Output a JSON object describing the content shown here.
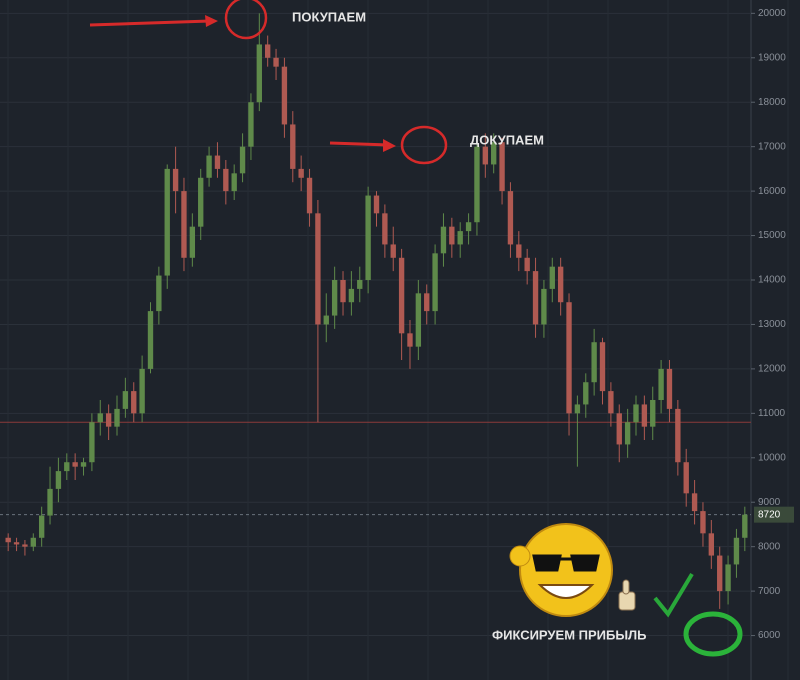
{
  "chart_data": {
    "type": "candlestick",
    "annotations": [
      "ПОКУПАЕМ",
      "ДОКУПАЕМ",
      "ФИКСИРУЕМ ПРИБЫЛЬ"
    ],
    "ylim": [
      5000,
      20300
    ],
    "yticks": [
      6000,
      7000,
      8000,
      9000,
      10000,
      11000,
      12000,
      13000,
      14000,
      15000,
      16000,
      17000,
      18000,
      19000,
      20000
    ],
    "grid": true,
    "last_price": 8720,
    "level": 10800,
    "up_color": "#5f8a4a",
    "down_color": "#b05a52",
    "open": [
      8200,
      8100,
      8050,
      8000,
      8200,
      8700,
      9300,
      9700,
      9900,
      9800,
      9900,
      10800,
      11000,
      10700,
      11100,
      11500,
      11000,
      12000,
      13300,
      14100,
      16500,
      16000,
      14500,
      15200,
      16300,
      16800,
      16500,
      16000,
      16400,
      17000,
      18000,
      19300,
      19000,
      18800,
      17500,
      16500,
      16300,
      15500,
      13000,
      13200,
      14000,
      13500,
      13800,
      14000,
      15900,
      15500,
      14800,
      14500,
      12800,
      12500,
      13700,
      13300,
      14600,
      15200,
      14800,
      15100,
      15300,
      17000,
      16600,
      17100,
      16000,
      14800,
      14500,
      14200,
      13000,
      13800,
      14300,
      13500,
      11000,
      11200,
      11700,
      12600,
      11500,
      11000,
      10300,
      10800,
      11200,
      10700,
      11300,
      12000,
      11100,
      9900,
      9200,
      8800,
      8300,
      7800,
      7000,
      7600,
      8200
    ],
    "high": [
      8300,
      8200,
      8150,
      8300,
      8900,
      9800,
      10000,
      10100,
      10100,
      10000,
      11000,
      11300,
      11200,
      11400,
      11800,
      11700,
      12300,
      13500,
      14300,
      16600,
      17000,
      16300,
      15500,
      16500,
      17000,
      17100,
      16700,
      16600,
      17300,
      18200,
      20000,
      19500,
      19200,
      19000,
      17800,
      16800,
      16500,
      15800,
      13700,
      14300,
      14200,
      14200,
      14300,
      16100,
      16000,
      15700,
      15200,
      14700,
      13100,
      14000,
      13900,
      14800,
      15500,
      15400,
      15300,
      15500,
      17200,
      17300,
      17300,
      17200,
      16200,
      15100,
      14700,
      14500,
      14000,
      14500,
      14500,
      13700,
      11400,
      11900,
      12900,
      12700,
      11700,
      11200,
      11100,
      11400,
      11400,
      11600,
      12200,
      12200,
      11300,
      10200,
      9500,
      9000,
      8600,
      8000,
      7800,
      8400,
      8900
    ],
    "low": [
      7900,
      7900,
      7800,
      7900,
      8000,
      8500,
      9000,
      9500,
      9500,
      9600,
      9700,
      10500,
      10400,
      10500,
      10900,
      10800,
      10800,
      11900,
      13000,
      13800,
      15500,
      14200,
      14300,
      14900,
      16100,
      16300,
      15700,
      15800,
      16200,
      16700,
      17800,
      18800,
      18500,
      17200,
      16200,
      16000,
      15200,
      10800,
      12600,
      12900,
      13200,
      13200,
      13500,
      13700,
      15200,
      14500,
      14200,
      12200,
      12000,
      12200,
      13000,
      13000,
      14300,
      14500,
      14500,
      14800,
      15000,
      16300,
      16400,
      15700,
      14500,
      14200,
      13900,
      12700,
      12700,
      13500,
      13200,
      10500,
      9800,
      10900,
      11400,
      11200,
      10700,
      9900,
      10000,
      10500,
      10400,
      10400,
      11000,
      10800,
      9600,
      8900,
      8500,
      8000,
      7500,
      6600,
      6700,
      7300,
      7900
    ],
    "close": [
      8100,
      8050,
      8000,
      8200,
      8700,
      9300,
      9700,
      9900,
      9800,
      9900,
      10800,
      11000,
      10700,
      11100,
      11500,
      11000,
      12000,
      13300,
      14100,
      16500,
      16000,
      14500,
      15200,
      16300,
      16800,
      16500,
      16000,
      16400,
      17000,
      18000,
      19300,
      19000,
      18800,
      17500,
      16500,
      16300,
      15500,
      13000,
      13200,
      14000,
      13500,
      13800,
      14000,
      15900,
      15500,
      14800,
      14500,
      12800,
      12500,
      13700,
      13300,
      14600,
      15200,
      14800,
      15100,
      15300,
      17000,
      16600,
      17100,
      16000,
      14800,
      14500,
      14200,
      13000,
      13800,
      14300,
      13500,
      11000,
      11200,
      11700,
      12600,
      11500,
      11000,
      10300,
      10800,
      11200,
      10700,
      11300,
      12000,
      11100,
      9900,
      9200,
      8800,
      8300,
      7800,
      7000,
      7600,
      8200,
      8720
    ]
  }
}
